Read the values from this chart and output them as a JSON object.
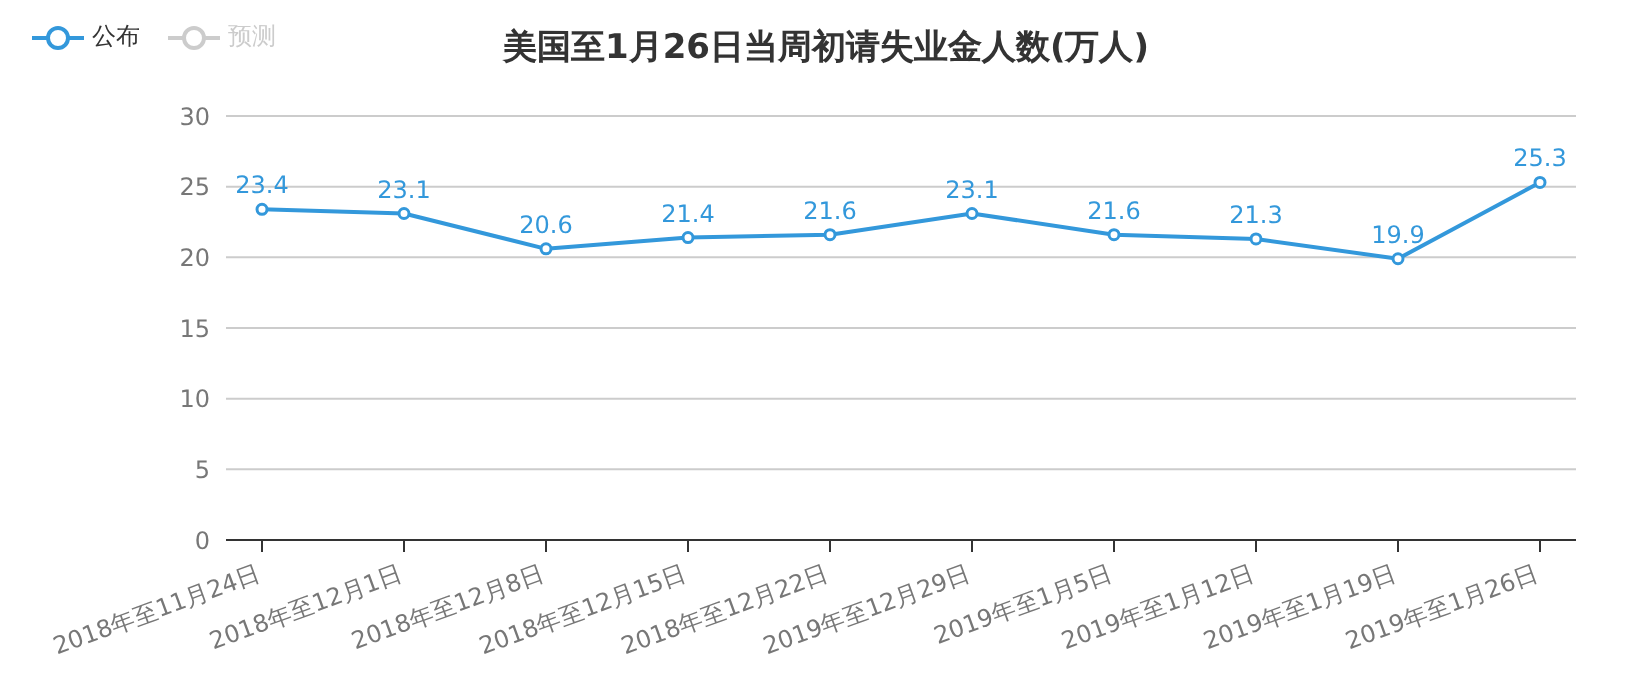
{
  "chart_data": {
    "type": "line",
    "title": "美国至1月26日当周初请失业金人数(万人)",
    "categories": [
      "2018年至11月24日",
      "2018年至12月1日",
      "2018年至12月8日",
      "2018年至12月15日",
      "2018年至12月22日",
      "2019年至12月29日",
      "2019年至1月5日",
      "2019年至1月12日",
      "2019年至1月19日",
      "2019年至1月26日"
    ],
    "series": [
      {
        "name": "公布",
        "color": "#3398db",
        "values": [
          23.4,
          23.1,
          20.6,
          21.4,
          21.6,
          23.1,
          21.6,
          21.3,
          19.9,
          25.3
        ]
      },
      {
        "name": "预测",
        "color": "#cccccc",
        "values": [
          null,
          null,
          null,
          null,
          null,
          null,
          null,
          null,
          null,
          null
        ]
      }
    ],
    "ylim": [
      0,
      30
    ],
    "yticks": [
      0,
      5,
      10,
      15,
      20,
      25,
      30
    ],
    "grid": "y",
    "legend": "top left",
    "marker": "circle",
    "line_style": "solid",
    "data_labels": true
  }
}
